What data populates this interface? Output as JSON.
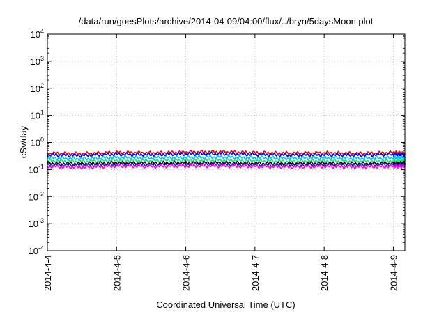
{
  "chart_data": {
    "type": "line",
    "title": "/data/run/goesPlots/archive/2014-04-09/04:00/flux/../bryn/5daysMoon.plot",
    "xlabel": "Coordinated Universal Time (UTC)",
    "ylabel": "cSv/day",
    "y_scale": "log",
    "ylim": [
      0.0001,
      10000
    ],
    "y_ticks": [
      {
        "base": "10",
        "exp": "-4",
        "value": 0.0001
      },
      {
        "base": "10",
        "exp": "-3",
        "value": 0.001
      },
      {
        "base": "10",
        "exp": "-2",
        "value": 0.01
      },
      {
        "base": "10",
        "exp": "-1",
        "value": 0.1
      },
      {
        "base": "10",
        "exp": "0",
        "value": 1
      },
      {
        "base": "10",
        "exp": "1",
        "value": 10
      },
      {
        "base": "10",
        "exp": "2",
        "value": 100
      },
      {
        "base": "10",
        "exp": "3",
        "value": 1000
      },
      {
        "base": "10",
        "exp": "4",
        "value": 10000
      }
    ],
    "xlim": [
      "2014-04-04 00:00",
      "2014-04-09 04:00"
    ],
    "x_ticks": [
      {
        "label": "2014-4-4",
        "value": "2014-04-04 00:00"
      },
      {
        "label": "2014-4-5",
        "value": "2014-04-05 00:00"
      },
      {
        "label": "2014-4-6",
        "value": "2014-04-06 00:00"
      },
      {
        "label": "2014-4-7",
        "value": "2014-04-07 00:00"
      },
      {
        "label": "2014-4-8",
        "value": "2014-04-08 00:00"
      },
      {
        "label": "2014-4-9",
        "value": "2014-04-09 00:00"
      }
    ],
    "grid": true,
    "legend": "none",
    "series": [
      {
        "color": "#ff0000",
        "x": [
          "2014-04-04 00:00",
          "2014-04-04 12:00",
          "2014-04-05 00:00",
          "2014-04-05 12:00",
          "2014-04-06 00:00",
          "2014-04-06 12:00",
          "2014-04-07 00:00",
          "2014-04-07 12:00",
          "2014-04-08 00:00",
          "2014-04-08 12:00",
          "2014-04-09 00:00",
          "2014-04-09 04:00"
        ],
        "values": [
          0.4,
          0.38,
          0.43,
          0.41,
          0.44,
          0.45,
          0.42,
          0.4,
          0.41,
          0.39,
          0.42,
          0.4
        ]
      },
      {
        "color": "#0000ff",
        "x": [
          "2014-04-04 00:00",
          "2014-04-04 12:00",
          "2014-04-05 00:00",
          "2014-04-05 12:00",
          "2014-04-06 00:00",
          "2014-04-06 12:00",
          "2014-04-07 00:00",
          "2014-04-07 12:00",
          "2014-04-08 00:00",
          "2014-04-08 12:00",
          "2014-04-09 00:00",
          "2014-04-09 04:00"
        ],
        "values": [
          0.35,
          0.33,
          0.37,
          0.35,
          0.38,
          0.38,
          0.36,
          0.34,
          0.35,
          0.34,
          0.36,
          0.35
        ]
      },
      {
        "color": "#00c0ff",
        "x": [
          "2014-04-04 00:00",
          "2014-04-04 12:00",
          "2014-04-05 00:00",
          "2014-04-05 12:00",
          "2014-04-06 00:00",
          "2014-04-06 12:00",
          "2014-04-07 00:00",
          "2014-04-07 12:00",
          "2014-04-08 00:00",
          "2014-04-08 12:00",
          "2014-04-09 00:00",
          "2014-04-09 04:00"
        ],
        "values": [
          0.27,
          0.25,
          0.28,
          0.27,
          0.28,
          0.29,
          0.27,
          0.26,
          0.27,
          0.26,
          0.27,
          0.27
        ]
      },
      {
        "color": "#20e080",
        "x": [
          "2014-04-04 00:00",
          "2014-04-04 12:00",
          "2014-04-05 00:00",
          "2014-04-05 12:00",
          "2014-04-06 00:00",
          "2014-04-06 12:00",
          "2014-04-07 00:00",
          "2014-04-07 12:00",
          "2014-04-08 00:00",
          "2014-04-08 12:00",
          "2014-04-09 00:00",
          "2014-04-09 04:00"
        ],
        "values": [
          0.21,
          0.2,
          0.22,
          0.21,
          0.22,
          0.22,
          0.21,
          0.2,
          0.21,
          0.2,
          0.21,
          0.21
        ]
      },
      {
        "color": "#000000",
        "x": [
          "2014-04-04 00:00",
          "2014-04-04 12:00",
          "2014-04-05 00:00",
          "2014-04-05 12:00",
          "2014-04-06 00:00",
          "2014-04-06 12:00",
          "2014-04-07 00:00",
          "2014-04-07 12:00",
          "2014-04-08 00:00",
          "2014-04-08 12:00",
          "2014-04-09 00:00",
          "2014-04-09 04:00"
        ],
        "values": [
          0.17,
          0.165,
          0.175,
          0.17,
          0.175,
          0.175,
          0.17,
          0.165,
          0.17,
          0.165,
          0.17,
          0.17
        ]
      },
      {
        "color": "#2020a0",
        "x": [
          "2014-04-04 00:00",
          "2014-04-04 12:00",
          "2014-04-05 00:00",
          "2014-04-05 12:00",
          "2014-04-06 00:00",
          "2014-04-06 12:00",
          "2014-04-07 00:00",
          "2014-04-07 12:00",
          "2014-04-08 00:00",
          "2014-04-08 12:00",
          "2014-04-09 00:00",
          "2014-04-09 04:00"
        ],
        "values": [
          0.15,
          0.145,
          0.155,
          0.15,
          0.155,
          0.155,
          0.15,
          0.145,
          0.15,
          0.145,
          0.15,
          0.15
        ]
      },
      {
        "color": "#ff00ff",
        "x": [
          "2014-04-04 00:00",
          "2014-04-04 12:00",
          "2014-04-05 00:00",
          "2014-04-05 12:00",
          "2014-04-06 00:00",
          "2014-04-06 12:00",
          "2014-04-07 00:00",
          "2014-04-07 12:00",
          "2014-04-08 00:00",
          "2014-04-08 12:00",
          "2014-04-09 00:00",
          "2014-04-09 04:00"
        ],
        "values": [
          0.13,
          0.12,
          0.135,
          0.13,
          0.135,
          0.135,
          0.13,
          0.125,
          0.13,
          0.125,
          0.13,
          0.13
        ]
      }
    ]
  }
}
